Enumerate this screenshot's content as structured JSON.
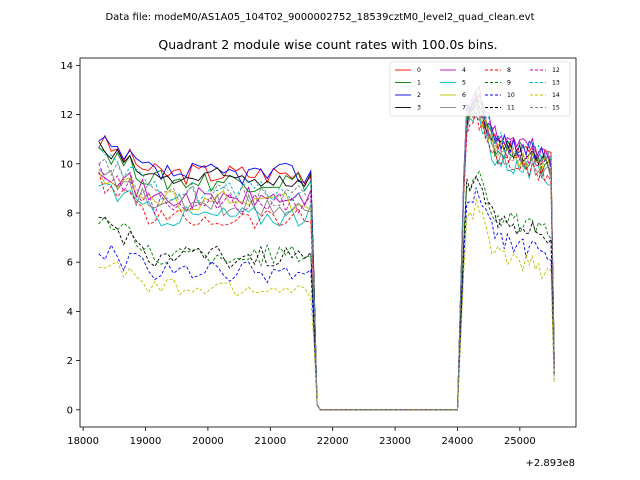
{
  "figure": {
    "suptitle": "Data file: modeM0/AS1A05_104T02_9000002752_18539cztM0_level2_quad_clean.evt",
    "title": "Quadrant 2 module wise count rates with 100.0s bins.",
    "x_offset_label": "+2.893e8"
  },
  "chart_data": {
    "type": "line",
    "title": "Quadrant 2 module wise count rates with 100.0s bins.",
    "xlabel": "",
    "ylabel": "",
    "x_offset": "+2.893e8",
    "xlim": [
      17950,
      25900
    ],
    "ylim": [
      -0.7,
      14.3
    ],
    "xticks": [
      18000,
      19000,
      20000,
      21000,
      22000,
      23000,
      24000,
      25000
    ],
    "yticks": [
      0,
      2,
      4,
      6,
      8,
      10,
      12,
      14
    ],
    "grid": false,
    "legend_position": "top-right",
    "segments": [
      {
        "x_start": 18250,
        "x_end": 21650,
        "step": 100
      },
      {
        "x_start": 21650,
        "x_end": 21800,
        "note_gap": "drop"
      },
      {
        "x_start": 24050,
        "x_end": 25550,
        "step": 100
      }
    ],
    "series": [
      {
        "name": "0",
        "color": "#ff0000",
        "style": "solid",
        "level1": 9.6,
        "level2": 11.3,
        "start": 10.9
      },
      {
        "name": "1",
        "color": "#008000",
        "style": "solid",
        "level1": 9.3,
        "level2": 11.0,
        "start": 10.7
      },
      {
        "name": "2",
        "color": "#0000ff",
        "style": "solid",
        "level1": 9.6,
        "level2": 11.4,
        "start": 10.8
      },
      {
        "name": "3",
        "color": "#000000",
        "style": "solid",
        "level1": 9.4,
        "level2": 11.1,
        "start": 10.6
      },
      {
        "name": "4",
        "color": "#bf00bf",
        "style": "solid",
        "level1": 8.6,
        "level2": 11.6,
        "start": 10.0
      },
      {
        "name": "5",
        "color": "#00bfbf",
        "style": "solid",
        "level1": 7.9,
        "level2": 10.6,
        "start": 9.3
      },
      {
        "name": "6",
        "color": "#bfbf00",
        "style": "solid",
        "level1": 8.5,
        "level2": 11.0,
        "start": 9.7
      },
      {
        "name": "7",
        "color": "#808080",
        "style": "solid",
        "level1": 8.3,
        "level2": 10.8,
        "start": 9.6
      },
      {
        "name": "8",
        "color": "#ff0000",
        "style": "dashed",
        "level1": 7.8,
        "level2": 10.6,
        "start": 9.3
      },
      {
        "name": "9",
        "color": "#008000",
        "style": "dashed",
        "level1": 6.3,
        "level2": 8.3,
        "start": 7.9
      },
      {
        "name": "10",
        "color": "#0000ff",
        "style": "dashed",
        "level1": 5.6,
        "level2": 7.4,
        "start": 6.5
      },
      {
        "name": "11",
        "color": "#000000",
        "style": "dashed",
        "level1": 6.2,
        "level2": 8.2,
        "start": 7.8
      },
      {
        "name": "12",
        "color": "#bf00bf",
        "style": "dashed",
        "level1": 8.4,
        "level2": 11.2,
        "start": 9.8
      },
      {
        "name": "13",
        "color": "#00bfbf",
        "style": "dashed",
        "level1": 8.9,
        "level2": 11.4,
        "start": 10.3
      },
      {
        "name": "14",
        "color": "#bfbf00",
        "style": "dashed",
        "level1": 4.9,
        "level2": 6.8,
        "start": 6.1
      },
      {
        "name": "15",
        "color": "#808080",
        "style": "dashed",
        "level1": 8.7,
        "level2": 11.1,
        "start": 10.1
      }
    ]
  }
}
